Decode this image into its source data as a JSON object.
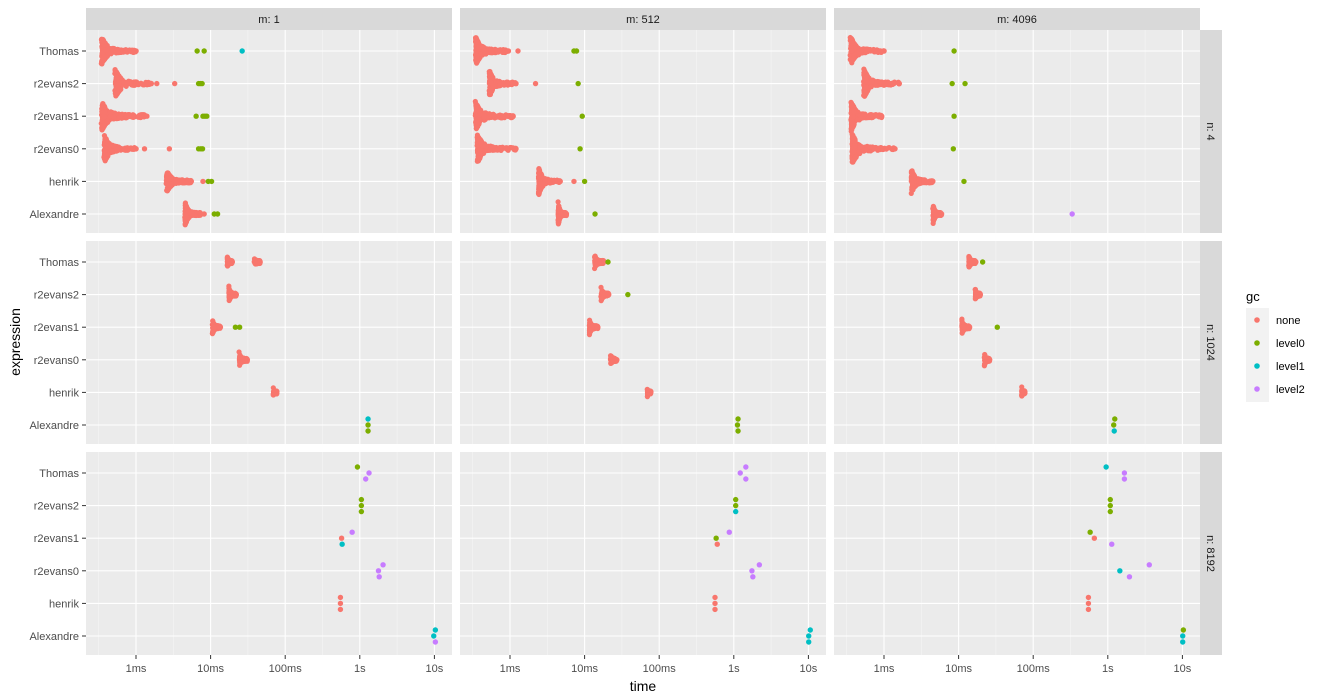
{
  "chart_data": {
    "type": "scatter",
    "subtype": "faceted beeswarm / jitter plot (log time scale)",
    "xlabel": "time",
    "ylabel": "expression",
    "x_scale": "log10",
    "x_unit": "seconds",
    "xlim": [
      0.000213,
      17.4
    ],
    "x_ticks": [
      {
        "value": 0.001,
        "label": "1ms"
      },
      {
        "value": 0.01,
        "label": "10ms"
      },
      {
        "value": 0.1,
        "label": "100ms"
      },
      {
        "value": 1,
        "label": "1s"
      },
      {
        "value": 10,
        "label": "10s"
      }
    ],
    "categories": [
      "Thomas",
      "r2evans2",
      "r2evans1",
      "r2evans0",
      "henrik",
      "Alexandre"
    ],
    "grid": true,
    "col_facets": [
      "m: 1",
      "m: 512",
      "m: 4096"
    ],
    "row_facets": [
      "n: 4",
      "n: 1024",
      "n: 8192"
    ],
    "legend": {
      "title": "gc",
      "position": "right",
      "entries": [
        {
          "key": "none",
          "label": "none",
          "color": "#F8766D"
        },
        {
          "key": "level0",
          "label": "level0",
          "color": "#7CAE00"
        },
        {
          "key": "level1",
          "label": "level1",
          "color": "#00BFC4"
        },
        {
          "key": "level2",
          "label": "level2",
          "color": "#C77CFF"
        }
      ]
    },
    "panels": [
      {
        "row": 0,
        "col": 0,
        "dense": [
          {
            "expr": "Thomas",
            "min": 0.00034,
            "mode": 0.00036,
            "max": 0.001,
            "spread": 1.0
          },
          {
            "expr": "r2evans2",
            "min": 0.00052,
            "mode": 0.00055,
            "max": 0.0016,
            "spread": 0.95
          },
          {
            "expr": "r2evans1",
            "min": 0.00034,
            "mode": 0.00036,
            "max": 0.0013,
            "spread": 1.0
          },
          {
            "expr": "r2evans0",
            "min": 0.00037,
            "mode": 0.00039,
            "max": 0.001,
            "spread": 0.95
          },
          {
            "expr": "henrik",
            "min": 0.0025,
            "mode": 0.0028,
            "max": 0.0055,
            "spread": 0.9
          },
          {
            "expr": "Alexandre",
            "min": 0.0045,
            "mode": 0.0047,
            "max": 0.0075,
            "spread": 0.85
          }
        ],
        "points": [
          [
            "Thomas",
            0.0066,
            "level0"
          ],
          [
            "Thomas",
            0.0082,
            "level0"
          ],
          [
            "Thomas",
            0.0265,
            "level1"
          ],
          [
            "r2evans2",
            0.0019,
            "none"
          ],
          [
            "r2evans2",
            0.0033,
            "none"
          ],
          [
            "r2evans2",
            0.0069,
            "level0"
          ],
          [
            "r2evans2",
            0.0073,
            "level0"
          ],
          [
            "r2evans2",
            0.0077,
            "level0"
          ],
          [
            "r2evans1",
            0.0014,
            "none"
          ],
          [
            "r2evans1",
            0.0064,
            "level0"
          ],
          [
            "r2evans1",
            0.0079,
            "level0"
          ],
          [
            "r2evans1",
            0.0084,
            "level0"
          ],
          [
            "r2evans1",
            0.0089,
            "level0"
          ],
          [
            "r2evans0",
            0.0013,
            "none"
          ],
          [
            "r2evans0",
            0.0028,
            "none"
          ],
          [
            "r2evans0",
            0.0069,
            "level0"
          ],
          [
            "r2evans0",
            0.0074,
            "level0"
          ],
          [
            "r2evans0",
            0.0078,
            "level0"
          ],
          [
            "henrik",
            0.0079,
            "none"
          ],
          [
            "henrik",
            0.0093,
            "level0"
          ],
          [
            "henrik",
            0.0103,
            "level0"
          ],
          [
            "Alexandre",
            0.0082,
            "none"
          ],
          [
            "Alexandre",
            0.0112,
            "level0"
          ],
          [
            "Alexandre",
            0.0124,
            "level0"
          ]
        ]
      },
      {
        "row": 0,
        "col": 1,
        "dense": [
          {
            "expr": "Thomas",
            "min": 0.00034,
            "mode": 0.00036,
            "max": 0.00095,
            "spread": 1.0
          },
          {
            "expr": "r2evans2",
            "min": 0.00052,
            "mode": 0.00054,
            "max": 0.0012,
            "spread": 0.95
          },
          {
            "expr": "r2evans1",
            "min": 0.00034,
            "mode": 0.00036,
            "max": 0.0011,
            "spread": 0.95
          },
          {
            "expr": "r2evans0",
            "min": 0.00036,
            "mode": 0.00038,
            "max": 0.0012,
            "spread": 0.95
          },
          {
            "expr": "henrik",
            "min": 0.0024,
            "mode": 0.00245,
            "max": 0.0047,
            "spread": 0.95
          },
          {
            "expr": "Alexandre",
            "min": 0.0044,
            "mode": 0.0045,
            "max": 0.0057,
            "spread": 0.9
          }
        ],
        "points": [
          [
            "Thomas",
            0.00128,
            "none"
          ],
          [
            "Thomas",
            0.0072,
            "level0"
          ],
          [
            "Thomas",
            0.0078,
            "level0"
          ],
          [
            "r2evans2",
            0.0022,
            "none"
          ],
          [
            "r2evans2",
            0.0082,
            "level0"
          ],
          [
            "r2evans1",
            0.0093,
            "level0"
          ],
          [
            "r2evans0",
            0.0087,
            "level0"
          ],
          [
            "henrik",
            0.0072,
            "none"
          ],
          [
            "henrik",
            0.01,
            "level0"
          ],
          [
            "Alexandre",
            0.0138,
            "level0"
          ]
        ]
      },
      {
        "row": 0,
        "col": 2,
        "dense": [
          {
            "expr": "Thomas",
            "min": 0.00035,
            "mode": 0.00037,
            "max": 0.001,
            "spread": 1.0
          },
          {
            "expr": "r2evans2",
            "min": 0.00053,
            "mode": 0.00055,
            "max": 0.0016,
            "spread": 0.95
          },
          {
            "expr": "r2evans1",
            "min": 0.00036,
            "mode": 0.00037,
            "max": 0.00093,
            "spread": 1.0
          },
          {
            "expr": "r2evans0",
            "min": 0.00037,
            "mode": 0.00038,
            "max": 0.0014,
            "spread": 0.95
          },
          {
            "expr": "henrik",
            "min": 0.0023,
            "mode": 0.0024,
            "max": 0.0045,
            "spread": 0.9
          },
          {
            "expr": "Alexandre",
            "min": 0.0045,
            "mode": 0.0047,
            "max": 0.0059,
            "spread": 0.8
          }
        ],
        "points": [
          [
            "Thomas",
            0.0087,
            "level0"
          ],
          [
            "r2evans2",
            0.0082,
            "level0"
          ],
          [
            "r2evans2",
            0.0122,
            "level0"
          ],
          [
            "r2evans1",
            0.0087,
            "level0"
          ],
          [
            "r2evans0",
            0.0085,
            "level0"
          ],
          [
            "henrik",
            0.0118,
            "level0"
          ],
          [
            "Alexandre",
            0.333,
            "level2"
          ]
        ]
      },
      {
        "row": 1,
        "col": 0,
        "dense": [
          {
            "expr": "Thomas",
            "min": 0.0165,
            "mode": 0.017,
            "max": 0.0195,
            "spread": 0.55
          },
          {
            "expr": "Thomas",
            "min": 0.038,
            "mode": 0.042,
            "max": 0.046,
            "spread": 0.3
          },
          {
            "expr": "r2evans2",
            "min": 0.0175,
            "mode": 0.018,
            "max": 0.022,
            "spread": 0.55
          },
          {
            "expr": "r2evans1",
            "min": 0.0105,
            "mode": 0.011,
            "max": 0.0135,
            "spread": 0.55
          },
          {
            "expr": "r2evans0",
            "min": 0.024,
            "mode": 0.026,
            "max": 0.031,
            "spread": 0.55
          },
          {
            "expr": "henrik",
            "min": 0.069,
            "mode": 0.071,
            "max": 0.073,
            "spread": 0.45
          }
        ],
        "points": [
          [
            "r2evans1",
            0.0215,
            "level0"
          ],
          [
            "r2evans1",
            0.0245,
            "level0"
          ],
          [
            "Alexandre",
            1.29,
            "level1"
          ],
          [
            "Alexandre",
            1.29,
            "level0"
          ],
          [
            "Alexandre",
            1.29,
            "level0"
          ]
        ]
      },
      {
        "row": 1,
        "col": 1,
        "dense": [
          {
            "expr": "Thomas",
            "min": 0.0135,
            "mode": 0.0145,
            "max": 0.018,
            "spread": 0.55
          },
          {
            "expr": "r2evans2",
            "min": 0.0165,
            "mode": 0.0175,
            "max": 0.021,
            "spread": 0.55
          },
          {
            "expr": "r2evans1",
            "min": 0.0115,
            "mode": 0.012,
            "max": 0.015,
            "spread": 0.55
          },
          {
            "expr": "r2evans0",
            "min": 0.022,
            "mode": 0.023,
            "max": 0.027,
            "spread": 0.5
          },
          {
            "expr": "henrik",
            "min": 0.069,
            "mode": 0.071,
            "max": 0.074,
            "spread": 0.45
          }
        ],
        "points": [
          [
            "Thomas",
            0.0206,
            "level0"
          ],
          [
            "r2evans2",
            0.038,
            "level0"
          ],
          [
            "Alexandre",
            1.14,
            "level0"
          ],
          [
            "Alexandre",
            1.12,
            "level0"
          ],
          [
            "Alexandre",
            1.14,
            "level0"
          ]
        ]
      },
      {
        "row": 1,
        "col": 2,
        "dense": [
          {
            "expr": "Thomas",
            "min": 0.0135,
            "mode": 0.014,
            "max": 0.017,
            "spread": 0.55
          },
          {
            "expr": "r2evans2",
            "min": 0.0165,
            "mode": 0.017,
            "max": 0.0195,
            "spread": 0.55
          },
          {
            "expr": "r2evans1",
            "min": 0.011,
            "mode": 0.0115,
            "max": 0.014,
            "spread": 0.55
          },
          {
            "expr": "r2evans0",
            "min": 0.022,
            "mode": 0.023,
            "max": 0.026,
            "spread": 0.55
          },
          {
            "expr": "henrik",
            "min": 0.07,
            "mode": 0.071,
            "max": 0.074,
            "spread": 0.45
          }
        ],
        "points": [
          [
            "Thomas",
            0.021,
            "level0"
          ],
          [
            "r2evans1",
            0.033,
            "level0"
          ],
          [
            "Alexandre",
            1.24,
            "level0"
          ],
          [
            "Alexandre",
            1.2,
            "level0"
          ],
          [
            "Alexandre",
            1.22,
            "level1"
          ]
        ]
      },
      {
        "row": 2,
        "col": 0,
        "dense": [],
        "points": [
          [
            "Thomas",
            0.93,
            "level0"
          ],
          [
            "Thomas",
            1.33,
            "level2"
          ],
          [
            "Thomas",
            1.2,
            "level2"
          ],
          [
            "r2evans2",
            1.05,
            "level0"
          ],
          [
            "r2evans2",
            1.05,
            "level0"
          ],
          [
            "r2evans2",
            1.05,
            "level0"
          ],
          [
            "r2evans1",
            0.79,
            "level2"
          ],
          [
            "r2evans1",
            0.57,
            "none"
          ],
          [
            "r2evans1",
            0.58,
            "level1"
          ],
          [
            "r2evans0",
            2.05,
            "level2"
          ],
          [
            "r2evans0",
            1.78,
            "level2"
          ],
          [
            "r2evans0",
            1.82,
            "level2"
          ],
          [
            "henrik",
            0.55,
            "none"
          ],
          [
            "henrik",
            0.55,
            "none"
          ],
          [
            "henrik",
            0.55,
            "none"
          ],
          [
            "Alexandre",
            10.3,
            "level1"
          ],
          [
            "Alexandre",
            9.8,
            "level1"
          ],
          [
            "Alexandre",
            10.3,
            "level2"
          ]
        ]
      },
      {
        "row": 2,
        "col": 1,
        "dense": [],
        "points": [
          [
            "Thomas",
            1.45,
            "level2"
          ],
          [
            "Thomas",
            1.22,
            "level2"
          ],
          [
            "Thomas",
            1.45,
            "level2"
          ],
          [
            "r2evans2",
            1.06,
            "level0"
          ],
          [
            "r2evans2",
            1.06,
            "level0"
          ],
          [
            "r2evans2",
            1.06,
            "level1"
          ],
          [
            "r2evans1",
            0.87,
            "level2"
          ],
          [
            "r2evans1",
            0.58,
            "level0"
          ],
          [
            "r2evans1",
            0.6,
            "none"
          ],
          [
            "r2evans0",
            2.2,
            "level2"
          ],
          [
            "r2evans0",
            1.75,
            "level2"
          ],
          [
            "r2evans0",
            1.8,
            "level2"
          ],
          [
            "henrik",
            0.56,
            "none"
          ],
          [
            "henrik",
            0.56,
            "none"
          ],
          [
            "henrik",
            0.56,
            "none"
          ],
          [
            "Alexandre",
            10.6,
            "level1"
          ],
          [
            "Alexandre",
            10.1,
            "level1"
          ],
          [
            "Alexandre",
            10.1,
            "level1"
          ]
        ]
      },
      {
        "row": 2,
        "col": 2,
        "dense": [],
        "points": [
          [
            "Thomas",
            0.95,
            "level1"
          ],
          [
            "Thomas",
            1.67,
            "level2"
          ],
          [
            "Thomas",
            1.67,
            "level2"
          ],
          [
            "r2evans2",
            1.08,
            "level0"
          ],
          [
            "r2evans2",
            1.08,
            "level0"
          ],
          [
            "r2evans2",
            1.08,
            "level0"
          ],
          [
            "r2evans1",
            0.58,
            "level0"
          ],
          [
            "r2evans1",
            0.66,
            "none"
          ],
          [
            "r2evans1",
            1.13,
            "level2"
          ],
          [
            "r2evans0",
            3.6,
            "level2"
          ],
          [
            "r2evans0",
            1.45,
            "level1"
          ],
          [
            "r2evans0",
            1.95,
            "level2"
          ],
          [
            "henrik",
            0.55,
            "none"
          ],
          [
            "henrik",
            0.55,
            "none"
          ],
          [
            "henrik",
            0.55,
            "none"
          ],
          [
            "Alexandre",
            10.3,
            "level0"
          ],
          [
            "Alexandre",
            10.1,
            "level1"
          ],
          [
            "Alexandre",
            10.1,
            "level1"
          ]
        ]
      }
    ]
  }
}
